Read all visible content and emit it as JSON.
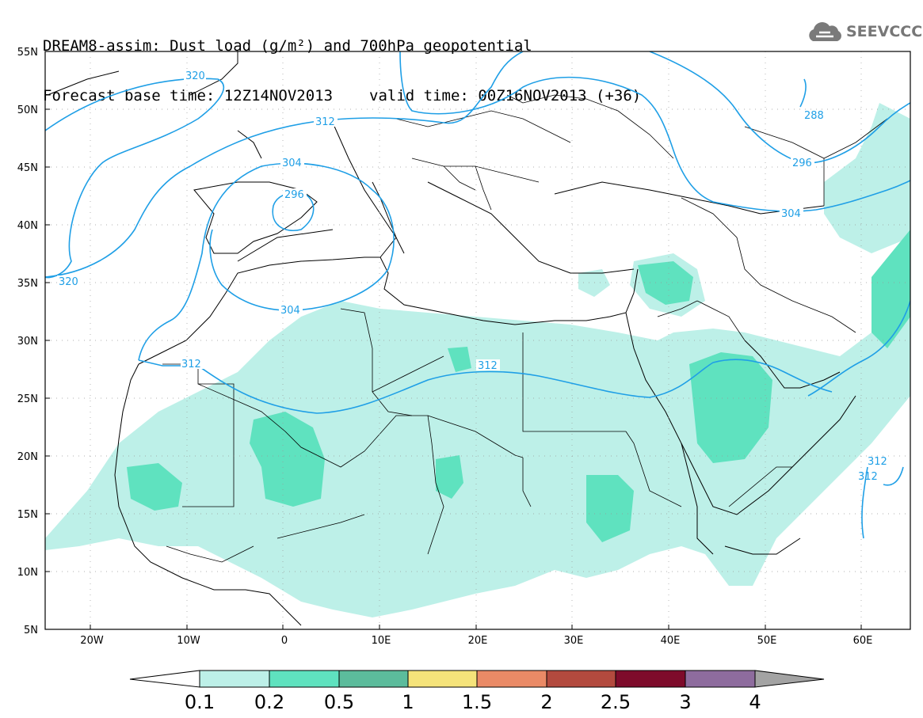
{
  "header": {
    "title": "DREAM8-assim: Dust load (g/m²) and 700hPa geopotential",
    "base_time_label": "Forecast base time: 12Z14NOV2013",
    "valid_time_label": "valid time: 00Z16NOV2013 (+36)"
  },
  "logo": {
    "text": "SEEVCCC",
    "icon": "cloud-icon"
  },
  "map": {
    "lon_range": [
      -25,
      65
    ],
    "lat_range": [
      5,
      55
    ],
    "lon_ticks": [
      "20W",
      "10W",
      "0",
      "10E",
      "20E",
      "30E",
      "40E",
      "50E",
      "60E"
    ],
    "lat_ticks": [
      "55N",
      "50N",
      "45N",
      "40N",
      "35N",
      "30N",
      "25N",
      "20N",
      "15N",
      "10N",
      "5N"
    ],
    "contour_color": "#1f9fe6",
    "contour_labels": [
      "320",
      "312",
      "304",
      "296",
      "304",
      "320",
      "312",
      "288",
      "296",
      "304",
      "312",
      "312",
      "312"
    ]
  },
  "colorbar": {
    "colors": [
      "#ffffff",
      "#bdf0e8",
      "#5fe2bf",
      "#5cbc9c",
      "#f5e37a",
      "#ea8a66",
      "#b34a3e",
      "#7e0b2b",
      "#8e6c9e",
      "#a3a3a3"
    ],
    "labels": [
      "0.1",
      "0.2",
      "0.5",
      "1",
      "1.5",
      "2",
      "2.5",
      "3",
      "4"
    ]
  }
}
